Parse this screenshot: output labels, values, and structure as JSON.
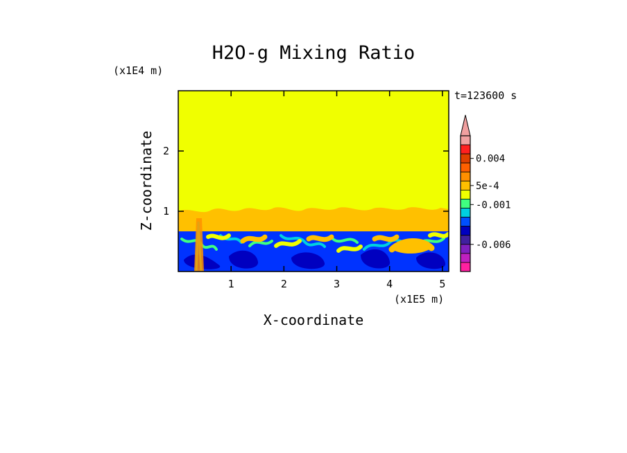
{
  "chart_data": {
    "type": "heatmap",
    "title": "H2O-g Mixing Ratio",
    "xlabel": "X-coordinate",
    "ylabel": "Z-coordinate",
    "x_scale_label": "(x1E5 m)",
    "y_scale_label": "(x1E4 m)",
    "time_label": "t=123600 s",
    "xlim": [
      0,
      5.12
    ],
    "ylim": [
      0,
      3.0
    ],
    "x_ticks": [
      "1",
      "2",
      "3",
      "4",
      "5"
    ],
    "x_tick_values": [
      1,
      2,
      3,
      4,
      5
    ],
    "y_ticks": [
      "1",
      "2"
    ],
    "y_tick_values": [
      1,
      2
    ],
    "field": {
      "upper_layer": {
        "z_from": 1.05,
        "z_to": 3.0,
        "value": "0",
        "color": "#f0ff00"
      },
      "transition_layer": {
        "z_from": 0.72,
        "z_to": 1.05,
        "description_value": "positive anomaly patches",
        "color": "#ffc000"
      },
      "lower_layer": {
        "z_from": 0.0,
        "z_to": 0.72,
        "color": "#0033ff"
      }
    },
    "colorbar": {
      "levels": [
        {
          "color": "#f0a0a0"
        },
        {
          "color": "#ff2020"
        },
        {
          "color": "#e04000"
        },
        {
          "color": "#ff6000"
        },
        {
          "color": "#ff9000"
        },
        {
          "color": "#ffc000"
        },
        {
          "color": "#f0ff00"
        },
        {
          "color": "#40ff80"
        },
        {
          "color": "#00d0e0"
        },
        {
          "color": "#0050ff"
        },
        {
          "color": "#0000c0"
        },
        {
          "color": "#4020a0"
        },
        {
          "color": "#8020c0"
        },
        {
          "color": "#c020c0"
        },
        {
          "color": "#ff20a0"
        }
      ],
      "labels": [
        "0.004",
        "5e-4",
        "-0.001",
        "-0.006"
      ],
      "label_level_index": [
        2.5,
        5.5,
        7.6,
        12.0
      ]
    }
  }
}
